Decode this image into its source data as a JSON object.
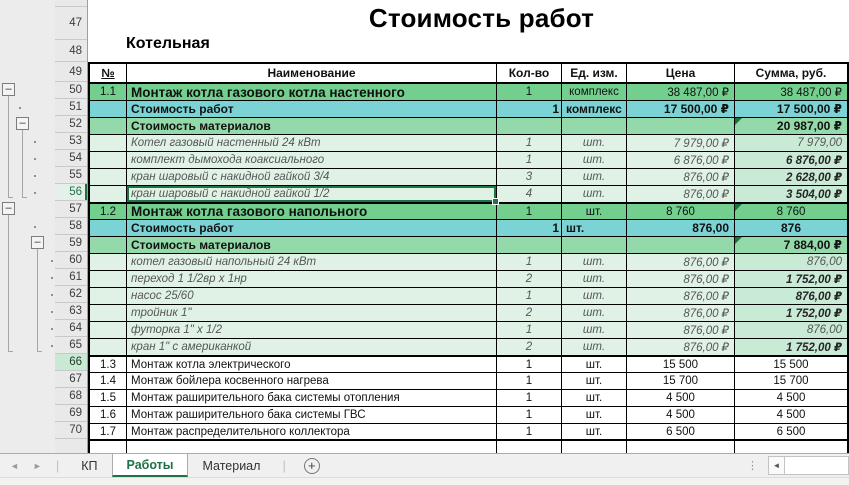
{
  "sheet": {
    "title": "Стоимость работ",
    "section": "Котельная"
  },
  "table": {
    "columns": [
      "№",
      "Наименование",
      "Кол-во",
      "Ед. изм.",
      "Цена",
      "Сумма, руб."
    ],
    "rows": [
      {
        "n": 50,
        "num": "1.1",
        "name": "Монтаж котла газового котла настенного",
        "qty": "1",
        "unit": "комплекс",
        "price": "38 487,00 ₽",
        "sum": "38 487,00 ₽",
        "style": "section"
      },
      {
        "n": 51,
        "num": "",
        "name": "Стоимость работ",
        "qty": "1",
        "unit": "комплекс",
        "price": "17 500,00 ₽",
        "sum": "17 500,00 ₽",
        "style": "work",
        "a_qty": "r",
        "a_unit": "l"
      },
      {
        "n": 52,
        "num": "",
        "name": "Стоимость материалов",
        "qty": "",
        "unit": "",
        "price": "",
        "sum": "20 987,00 ₽",
        "style": "materials",
        "flag": true
      },
      {
        "n": 53,
        "num": "",
        "name": "Котел газовый настенный 24 кВт",
        "qty": "1",
        "unit": "шт.",
        "price": "7 979,00 ₽",
        "sum": "7 979,00",
        "style": "item"
      },
      {
        "n": 54,
        "num": "",
        "name": "комплект дымохода коаксиального",
        "qty": "1",
        "unit": "шт.",
        "price": "6 876,00 ₽",
        "sum": "6 876,00 ₽",
        "style": "item",
        "sum_bold": true
      },
      {
        "n": 55,
        "num": "",
        "name": "кран шаровый с накидной гайкой 3/4",
        "qty": "3",
        "unit": "шт.",
        "price": "876,00 ₽",
        "sum": "2 628,00 ₽",
        "style": "item",
        "sum_bold": true
      },
      {
        "n": 56,
        "num": "",
        "name": "кран шаровый с накидной гайкой 1/2",
        "qty": "4",
        "unit": "шт.",
        "price": "876,00 ₽",
        "sum": "3 504,00 ₽",
        "style": "item",
        "sum_bold": true,
        "selected": true
      },
      {
        "n": 57,
        "num": "1.2",
        "name": "Монтаж котла  газового напольного",
        "qty": "1",
        "unit": "шт.",
        "price": "8 760",
        "sum": "8 760",
        "style": "section",
        "flag": true,
        "block_start": true,
        "a_price": "c",
        "a_sum": "c"
      },
      {
        "n": 58,
        "num": "",
        "name": "Стоимость работ",
        "qty": "1",
        "unit": "шт.",
        "price": "876,00",
        "sum": "876",
        "style": "work",
        "a_qty": "r",
        "a_unit": "l",
        "a_sum": "c"
      },
      {
        "n": 59,
        "num": "",
        "name": "Стоимость материалов",
        "qty": "",
        "unit": "",
        "price": "",
        "sum": "7 884,00 ₽",
        "style": "materials",
        "flag": true
      },
      {
        "n": 60,
        "num": "",
        "name": "котел газовый напольный  24 кВт",
        "qty": "1",
        "unit": "шт.",
        "price": "876,00 ₽",
        "sum": "876,00",
        "style": "item"
      },
      {
        "n": 61,
        "num": "",
        "name": "переход 1 1/2вр х 1нр",
        "qty": "2",
        "unit": "шт.",
        "price": "876,00 ₽",
        "sum": "1 752,00 ₽",
        "style": "item",
        "sum_bold": true
      },
      {
        "n": 62,
        "num": "",
        "name": "насос 25/60",
        "qty": "1",
        "unit": "шт.",
        "price": "876,00 ₽",
        "sum": "876,00 ₽",
        "style": "item",
        "sum_bold": true
      },
      {
        "n": 63,
        "num": "",
        "name": "тройник 1\"",
        "qty": "2",
        "unit": "шт.",
        "price": "876,00 ₽",
        "sum": "1 752,00 ₽",
        "style": "item",
        "sum_bold": true
      },
      {
        "n": 64,
        "num": "",
        "name": "футорка 1\" х 1/2",
        "qty": "1",
        "unit": "шт.",
        "price": "876,00 ₽",
        "sum": "876,00",
        "style": "item"
      },
      {
        "n": 65,
        "num": "",
        "name": "кран 1\" с американкой",
        "qty": "2",
        "unit": "шт.",
        "price": "876,00 ₽",
        "sum": "1 752,00 ₽",
        "style": "item",
        "sum_bold": true
      },
      {
        "n": 66,
        "num": "1.3",
        "name": "Монтаж котла электрического",
        "qty": "1",
        "unit": "шт.",
        "price": "15 500",
        "sum": "15 500",
        "style": "plain",
        "block_start": true,
        "a_price": "c",
        "a_sum": "c"
      },
      {
        "n": 67,
        "num": "1.4",
        "name": "Монтаж бойлера косвенного нагрева",
        "qty": "1",
        "unit": "шт.",
        "price": "15 700",
        "sum": "15 700",
        "style": "plain",
        "a_price": "c",
        "a_sum": "c"
      },
      {
        "n": 68,
        "num": "1.5",
        "name": "Монтаж раширительного бака системы отопления",
        "qty": "1",
        "unit": "шт.",
        "price": "4 500",
        "sum": "4 500",
        "style": "plain",
        "a_price": "c",
        "a_sum": "c"
      },
      {
        "n": 69,
        "num": "1.6",
        "name": "Монтаж раширительного бака системы ГВС",
        "qty": "1",
        "unit": "шт.",
        "price": "4 500",
        "sum": "4 500",
        "style": "plain",
        "a_price": "c",
        "a_sum": "c"
      },
      {
        "n": 70,
        "num": "1.7",
        "name": "Монтаж распределительного коллектора",
        "qty": "1",
        "unit": "шт.",
        "price": "6 500",
        "sum": "6 500",
        "style": "plain",
        "a_price": "c",
        "a_sum": "c",
        "block_end": true
      }
    ]
  },
  "grid": {
    "row_numbers": [
      47,
      48,
      49,
      50,
      51,
      52,
      53,
      54,
      55,
      56,
      57,
      58,
      59,
      60,
      61,
      62,
      63,
      64,
      65,
      66,
      67,
      68,
      69,
      70
    ],
    "active_row": 56,
    "marked_row": 66
  },
  "tabbar": {
    "tabs": [
      "КП",
      "Работы",
      "Материал"
    ],
    "active_tab": "Работы"
  },
  "icons": {
    "nav_left": "◄",
    "nav_right": "►",
    "new_sheet": "+",
    "more_dots": "⋮",
    "scroll_left": "◄"
  },
  "colors": {
    "section_green": "#72CF8E",
    "work_teal": "#7CD3D6",
    "materials_green": "#93D9A9",
    "item_light_green": "#DFF2E5",
    "item_sum_green": "#C9EAD4",
    "selection_green": "#217346",
    "flag_green": "#1E7144"
  }
}
